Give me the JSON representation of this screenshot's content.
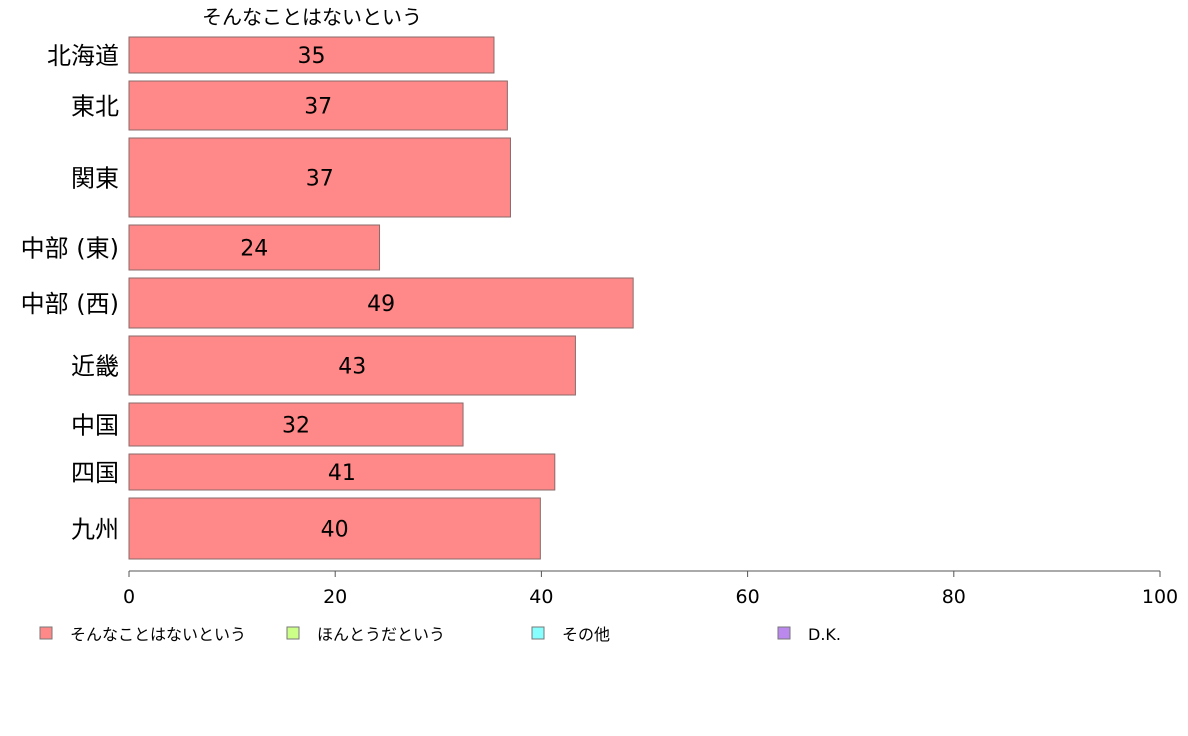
{
  "chart_data": {
    "type": "bar",
    "orientation": "horizontal",
    "title": "そんなことはないという",
    "categories": [
      "北海道",
      "東北",
      "関東",
      "中部 (東)",
      "中部 (西)",
      "近畿",
      "中国",
      "四国",
      "九州"
    ],
    "series": [
      {
        "name": "そんなことはないという",
        "color": "#ff8888",
        "values": [
          35.4,
          36.7,
          37.0,
          24.3,
          48.9,
          43.3,
          32.4,
          41.3,
          39.9
        ],
        "labels": [
          "35",
          "37",
          "37",
          "24",
          "49",
          "43",
          "32",
          "41",
          "40"
        ]
      }
    ],
    "xlim": [
      0,
      100
    ],
    "xticks": [
      "0",
      "20",
      "40",
      "60",
      "80",
      "100"
    ],
    "legend": {
      "placement": "bottom",
      "items": [
        {
          "label": "そんなことはないという",
          "color": "#ff8888"
        },
        {
          "label": "ほんとうだという",
          "color": "#ccff88"
        },
        {
          "label": "その他",
          "color": "#88ffff"
        },
        {
          "label": "D.K.",
          "color": "#bb88ee"
        }
      ]
    }
  }
}
